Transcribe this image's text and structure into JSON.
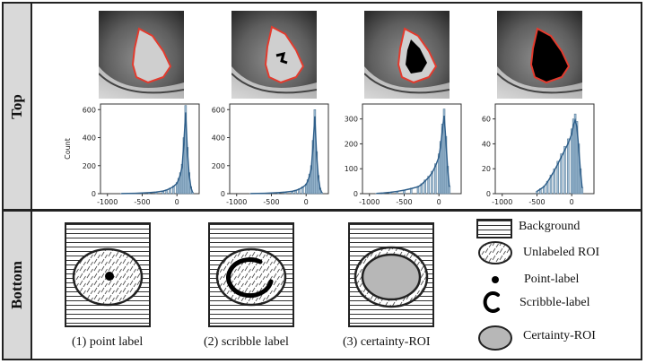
{
  "sections": {
    "top_label": "Top",
    "bottom_label": "Bottom"
  },
  "histograms": [
    {
      "ylabel": "Count",
      "yticks": [
        "0",
        "200",
        "400",
        "600"
      ],
      "xticks": [
        "-1000",
        "-500",
        "0"
      ]
    },
    {
      "yticks": [
        "0",
        "200",
        "400",
        "600"
      ],
      "xticks": [
        "-1000",
        "-500",
        "0"
      ]
    },
    {
      "yticks": [
        "0",
        "100",
        "200",
        "300"
      ],
      "xticks": [
        "-1000",
        "-500",
        "0"
      ]
    },
    {
      "yticks": [
        "0",
        "20",
        "40",
        "60"
      ],
      "xticks": [
        "-1000",
        "-500",
        "0"
      ]
    }
  ],
  "chart_data": [
    {
      "type": "bar",
      "ylabel": "Count",
      "ylim": [
        0,
        640
      ],
      "xlim": [
        -1100,
        320
      ],
      "x": [
        -800,
        -700,
        -600,
        -500,
        -400,
        -300,
        -200,
        -150,
        -100,
        -50,
        0,
        25,
        50,
        75,
        100,
        125,
        150,
        175,
        200,
        225
      ],
      "values": [
        1,
        2,
        3,
        5,
        8,
        12,
        20,
        28,
        40,
        55,
        80,
        110,
        150,
        210,
        400,
        630,
        330,
        150,
        50,
        10
      ]
    },
    {
      "type": "bar",
      "ylim": [
        0,
        640
      ],
      "xlim": [
        -1100,
        320
      ],
      "x": [
        -800,
        -700,
        -600,
        -500,
        -400,
        -300,
        -200,
        -150,
        -100,
        -50,
        0,
        25,
        50,
        75,
        100,
        125,
        150,
        175,
        200,
        225
      ],
      "values": [
        1,
        2,
        3,
        5,
        8,
        12,
        18,
        25,
        35,
        50,
        70,
        100,
        140,
        200,
        380,
        600,
        300,
        130,
        40,
        8
      ]
    },
    {
      "type": "bar",
      "ylim": [
        0,
        360
      ],
      "xlim": [
        -1100,
        320
      ],
      "x": [
        -900,
        -800,
        -700,
        -600,
        -500,
        -400,
        -300,
        -250,
        -200,
        -150,
        -100,
        -50,
        0,
        25,
        50,
        75,
        100,
        125,
        150
      ],
      "values": [
        1,
        3,
        6,
        10,
        15,
        22,
        30,
        40,
        55,
        70,
        90,
        120,
        160,
        210,
        280,
        340,
        230,
        110,
        30
      ]
    },
    {
      "type": "bar",
      "ylim": [
        0,
        72
      ],
      "xlim": [
        -1100,
        320
      ],
      "x": [
        -500,
        -450,
        -400,
        -350,
        -300,
        -250,
        -200,
        -150,
        -100,
        -50,
        0,
        25,
        50,
        75,
        100,
        125,
        150
      ],
      "values": [
        2,
        4,
        6,
        10,
        15,
        20,
        26,
        32,
        38,
        44,
        52,
        60,
        64,
        58,
        40,
        20,
        5
      ]
    }
  ],
  "panels": [
    {
      "caption": "(1) point label"
    },
    {
      "caption": "(2) scribble label"
    },
    {
      "caption": "(3) certainty-ROI"
    }
  ],
  "legend": [
    {
      "label": "Background",
      "icon": "hatched-rectangle"
    },
    {
      "label": "Unlabeled ROI",
      "icon": "dotted-ellipse"
    },
    {
      "label": "Point-label",
      "icon": "black-dot"
    },
    {
      "label": "Scribble-label",
      "icon": "scribble-arc"
    },
    {
      "label": "Certainty-ROI",
      "icon": "gray-ellipse"
    }
  ],
  "colors": {
    "bar_fill": "#9fbdd5",
    "bar_stroke": "#4a6f8c",
    "kde_line": "#2f5f8a",
    "roi_outline": "#e23b2e",
    "certainty_gray": "#b7b7b7",
    "sidebar_gray": "#d9d9d9"
  }
}
